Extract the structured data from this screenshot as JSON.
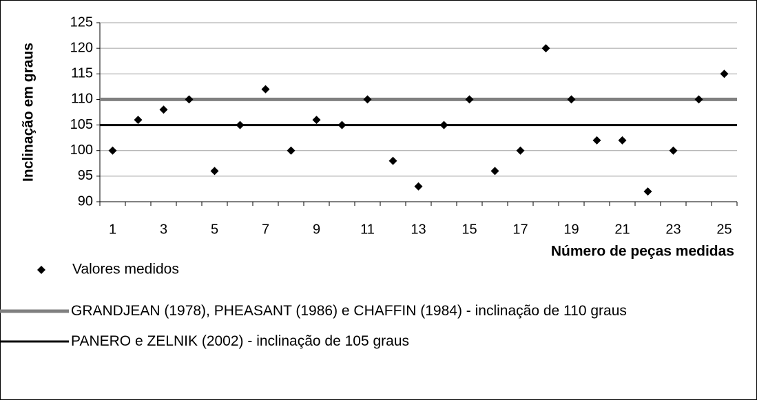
{
  "chart_data": {
    "type": "scatter",
    "y_label": "Inclinação em graus",
    "x_label": "Número de peças medidas",
    "categories": [
      "1",
      null,
      "3",
      null,
      "5",
      null,
      "7",
      null,
      "9",
      null,
      "11",
      null,
      "13",
      null,
      "15",
      null,
      "17",
      null,
      "19",
      null,
      "21",
      null,
      "23",
      null,
      "25"
    ],
    "series": [
      {
        "name": "Valores medidos",
        "color": "#000000",
        "values": [
          100,
          106,
          108,
          110,
          96,
          105,
          112,
          100,
          106,
          105,
          110,
          98,
          93,
          105,
          110,
          96,
          100,
          120,
          110,
          102,
          102,
          92,
          100,
          110,
          115
        ]
      }
    ],
    "reference_lines": [
      {
        "name": "GRANDJEAN (1978), PHEASANT (1986) e CHAFFIN (1984) - inclinação de 110 graus",
        "color": "#808080",
        "value": 110
      },
      {
        "name": "PANERO e ZELNIK (2002) - inclinação de 105 graus",
        "color": "#000000",
        "value": 105
      }
    ],
    "ylim": [
      90,
      125
    ],
    "yticks": [
      90,
      95,
      100,
      105,
      110,
      115,
      120,
      125
    ],
    "grid": true
  }
}
